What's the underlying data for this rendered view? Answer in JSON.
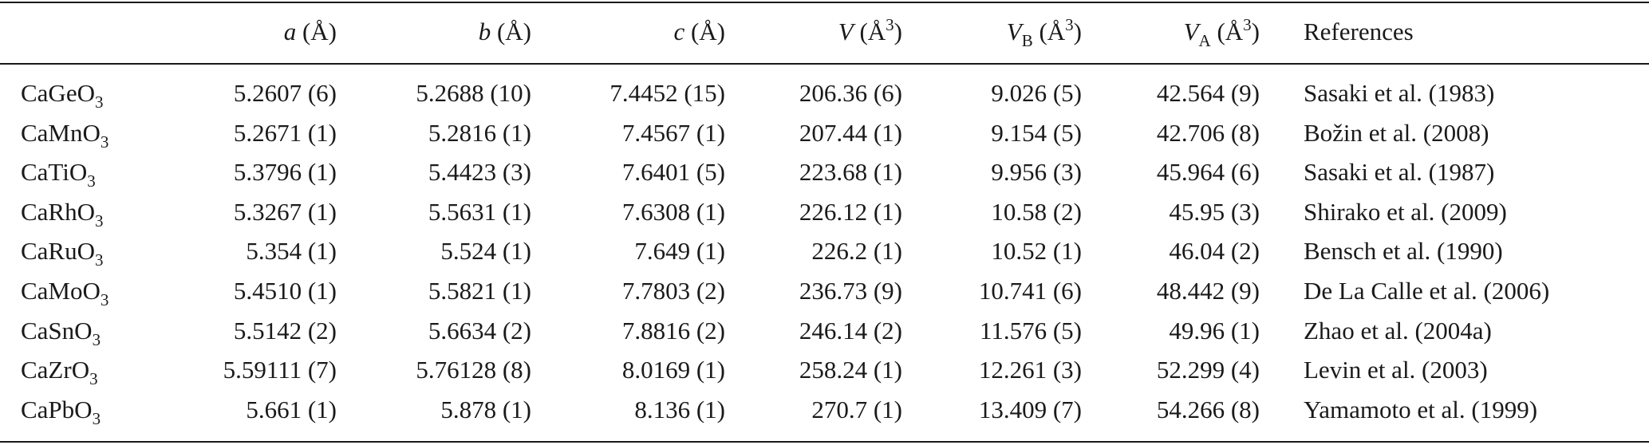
{
  "table": {
    "columns": [
      [
        {
          "t": "a",
          "i": true
        },
        {
          "t": " (Å)"
        }
      ],
      [
        {
          "t": "b",
          "i": true
        },
        {
          "t": " (Å)"
        }
      ],
      [
        {
          "t": "c",
          "i": true
        },
        {
          "t": " (Å)"
        }
      ],
      [
        {
          "t": "V",
          "i": true
        },
        {
          "t": " (Å"
        },
        {
          "t": "3",
          "sup": true
        },
        {
          "t": ")"
        }
      ],
      [
        {
          "t": "V",
          "i": true
        },
        {
          "t": "B",
          "sub": true
        },
        {
          "t": " (Å"
        },
        {
          "t": "3",
          "sup": true
        },
        {
          "t": ")"
        }
      ],
      [
        {
          "t": "V",
          "i": true
        },
        {
          "t": "A",
          "sub": true
        },
        {
          "t": " (Å"
        },
        {
          "t": "3",
          "sup": true
        },
        {
          "t": ")"
        }
      ],
      [
        {
          "t": "References"
        }
      ]
    ],
    "rows": [
      {
        "formula": [
          {
            "t": "CaGeO"
          },
          {
            "t": "3",
            "sub": true
          }
        ],
        "values": [
          "5.2607 (6)",
          "5.2688 (10)",
          "7.4452 (15)",
          "206.36 (6)",
          "9.026 (5)",
          "42.564 (9)"
        ],
        "reference": "Sasaki et al. (1983)"
      },
      {
        "formula": [
          {
            "t": "CaMnO"
          },
          {
            "t": "3",
            "sub": true
          }
        ],
        "values": [
          "5.2671 (1)",
          "5.2816 (1)",
          "7.4567 (1)",
          "207.44 (1)",
          "9.154 (5)",
          "42.706 (8)"
        ],
        "reference": "Božin et al. (2008)"
      },
      {
        "formula": [
          {
            "t": "CaTiO"
          },
          {
            "t": "3",
            "sub": true
          }
        ],
        "values": [
          "5.3796 (1)",
          "5.4423 (3)",
          "7.6401 (5)",
          "223.68 (1)",
          "9.956 (3)",
          "45.964 (6)"
        ],
        "reference": "Sasaki et al. (1987)"
      },
      {
        "formula": [
          {
            "t": "CaRhO"
          },
          {
            "t": "3",
            "sub": true
          }
        ],
        "values": [
          "5.3267 (1)",
          "5.5631 (1)",
          "7.6308 (1)",
          "226.12 (1)",
          "10.58 (2)",
          "45.95 (3)"
        ],
        "reference": "Shirako et al. (2009)"
      },
      {
        "formula": [
          {
            "t": "CaRuO"
          },
          {
            "t": "3",
            "sub": true
          }
        ],
        "values": [
          "5.354 (1)",
          "5.524 (1)",
          "7.649 (1)",
          "226.2 (1)",
          "10.52 (1)",
          "46.04 (2)"
        ],
        "reference": "Bensch et al. (1990)"
      },
      {
        "formula": [
          {
            "t": "CaMoO"
          },
          {
            "t": "3",
            "sub": true
          }
        ],
        "values": [
          "5.4510 (1)",
          "5.5821 (1)",
          "7.7803 (2)",
          "236.73 (9)",
          "10.741 (6)",
          "48.442 (9)"
        ],
        "reference": "De La Calle et al. (2006)"
      },
      {
        "formula": [
          {
            "t": "CaSnO"
          },
          {
            "t": "3",
            "sub": true
          }
        ],
        "values": [
          "5.5142 (2)",
          "5.6634 (2)",
          "7.8816 (2)",
          "246.14 (2)",
          "11.576 (5)",
          "49.96 (1)"
        ],
        "reference": "Zhao et al. (2004a)"
      },
      {
        "formula": [
          {
            "t": "CaZrO"
          },
          {
            "t": "3",
            "sub": true
          }
        ],
        "values": [
          "5.59111 (7)",
          "5.76128 (8)",
          "8.0169 (1)",
          "258.24 (1)",
          "12.261 (3)",
          "52.299 (4)"
        ],
        "reference": "Levin et al. (2003)"
      },
      {
        "formula": [
          {
            "t": "CaPbO"
          },
          {
            "t": "3",
            "sub": true
          }
        ],
        "values": [
          "5.661 (1)",
          "5.878 (1)",
          "8.136 (1)",
          "270.7 (1)",
          "13.409 (7)",
          "54.266 (8)"
        ],
        "reference": "Yamamoto et al. (1999)"
      }
    ]
  }
}
